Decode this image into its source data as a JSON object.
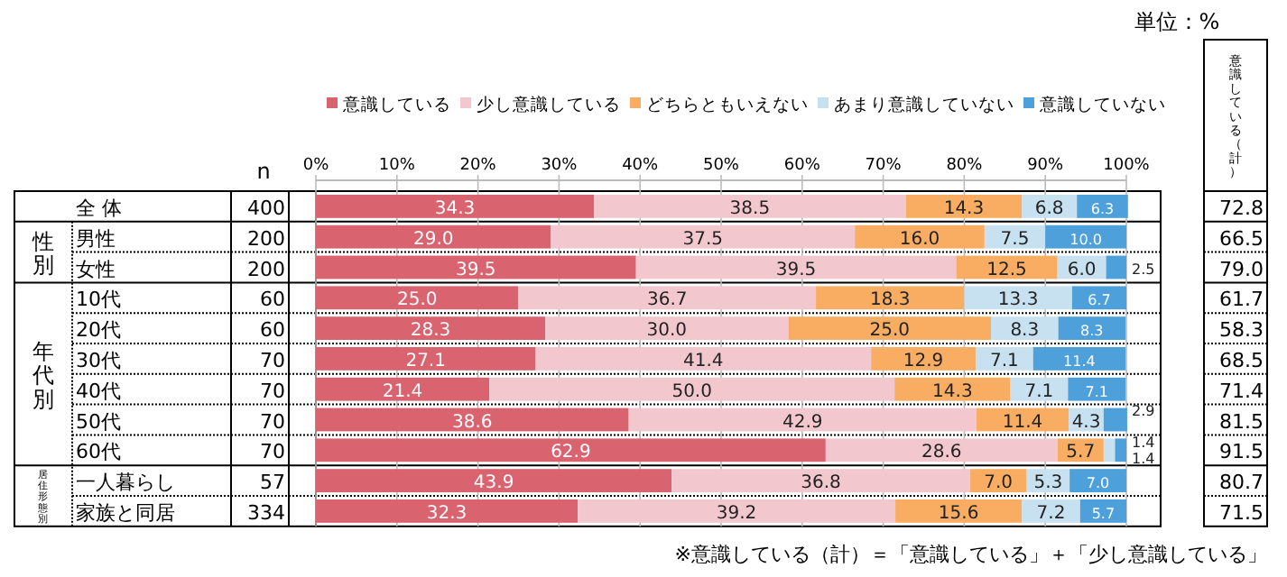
{
  "chart_data": {
    "type": "bar",
    "orientation": "horizontal",
    "stacked": true,
    "legend": "top",
    "grid": "x",
    "categories": [
      "全 体",
      "男性",
      "女性",
      "10代",
      "20代",
      "30代",
      "40代",
      "50代",
      "60代",
      "一人暮らし",
      "家族と同居"
    ],
    "xlim": [
      0,
      100
    ],
    "xticks": [
      {
        "value": 0,
        "label": "0%"
      },
      {
        "value": 10,
        "label": "10%"
      },
      {
        "value": 20,
        "label": "20%"
      },
      {
        "value": 30,
        "label": "30%"
      },
      {
        "value": 40,
        "label": "40%"
      },
      {
        "value": 50,
        "label": "50%"
      },
      {
        "value": 60,
        "label": "60%"
      },
      {
        "value": 70,
        "label": "70%"
      },
      {
        "value": 80,
        "label": "80%"
      },
      {
        "value": 90,
        "label": "90%"
      },
      {
        "value": 100,
        "label": "100%"
      }
    ],
    "series": [
      {
        "name": "意識している",
        "color": "#d9636f",
        "values": [
          34.3,
          29.0,
          39.5,
          25.0,
          28.3,
          27.1,
          21.4,
          38.6,
          62.9,
          43.9,
          32.3
        ],
        "value_labels": [
          "34.3",
          "29.0",
          "39.5",
          "25.0",
          "28.3",
          "27.1",
          "21.4",
          "38.6",
          "62.9",
          "43.9",
          "32.3"
        ]
      },
      {
        "name": "少し意識している",
        "color": "#f2c8ce",
        "values": [
          38.5,
          37.5,
          39.5,
          36.7,
          30.0,
          41.4,
          50.0,
          42.9,
          28.6,
          36.8,
          39.2
        ],
        "value_labels": [
          "38.5",
          "37.5",
          "39.5",
          "36.7",
          "30.0",
          "41.4",
          "50.0",
          "42.9",
          "28.6",
          "36.8",
          "39.2"
        ]
      },
      {
        "name": "どちらともいえない",
        "color": "#f8ad62",
        "values": [
          14.3,
          16.0,
          12.5,
          18.3,
          25.0,
          12.9,
          14.3,
          11.4,
          5.7,
          7.0,
          15.6
        ],
        "value_labels": [
          "14.3",
          "16.0",
          "12.5",
          "18.3",
          "25.0",
          "12.9",
          "14.3",
          "11.4",
          "5.7",
          "7.0",
          "15.6"
        ]
      },
      {
        "name": "あまり意識していない",
        "color": "#c7e1f1",
        "values": [
          6.8,
          7.5,
          6.0,
          13.3,
          8.3,
          7.1,
          7.1,
          4.3,
          1.4,
          5.3,
          7.2
        ],
        "value_labels": [
          "6.8",
          "7.5",
          "6.0",
          "13.3",
          "8.3",
          "7.1",
          "7.1",
          "4.3",
          "1.4",
          "5.3",
          "7.2"
        ]
      },
      {
        "name": "意識していない",
        "color": "#4da0da",
        "values": [
          6.3,
          10.0,
          2.5,
          6.7,
          8.3,
          11.4,
          7.1,
          2.9,
          1.4,
          7.0,
          5.7
        ],
        "value_labels": [
          "6.3",
          "10.0",
          "2.5",
          "6.7",
          "8.3",
          "11.4",
          "7.1",
          "2.9",
          "1.4",
          "7.0",
          "5.7"
        ]
      }
    ],
    "annotations": [
      "単位：%",
      "n",
      "400",
      "200",
      "200",
      "60",
      "60",
      "70",
      "70",
      "70",
      "70",
      "57",
      "334",
      "性別",
      "年代別",
      "居住形態別",
      "意識している（計）",
      "72.8",
      "66.5",
      "79.0",
      "61.7",
      "58.3",
      "68.5",
      "71.4",
      "81.5",
      "91.5",
      "80.7",
      "71.5",
      "※意識している（計）＝「意識している」＋「少し意識している」"
    ]
  }
}
